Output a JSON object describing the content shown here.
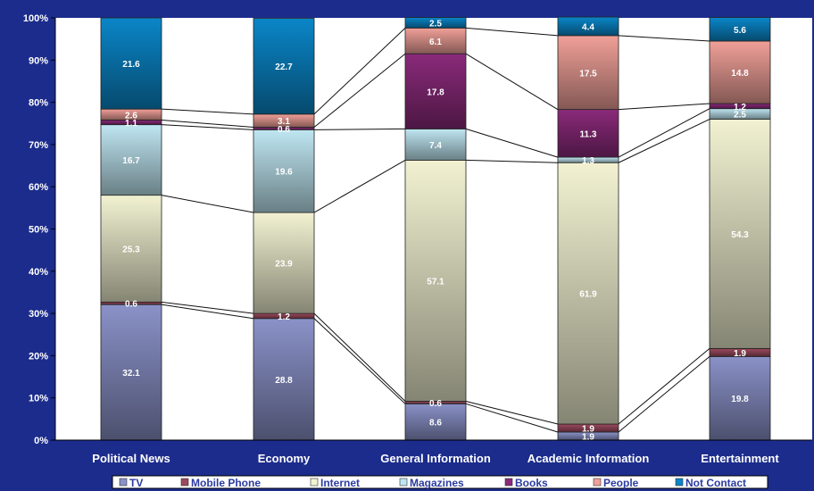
{
  "chart_data": {
    "type": "bar",
    "stacked": true,
    "percent_stacked": true,
    "categories": [
      "Political News",
      "Economy",
      "General Information",
      "Academic Information",
      "Entertainment"
    ],
    "series": [
      {
        "name": "TV",
        "color": "#8a92c8",
        "values": [
          32.1,
          28.8,
          8.6,
          1.9,
          19.8
        ]
      },
      {
        "name": "Mobile Phone",
        "color": "#9c4a5e",
        "values": [
          0.6,
          1.2,
          0.6,
          1.9,
          1.9
        ]
      },
      {
        "name": "Internet",
        "color": "#f2f2d2",
        "values": [
          25.3,
          23.9,
          57.1,
          61.9,
          54.3
        ]
      },
      {
        "name": "Magazines",
        "color": "#bfe6f2",
        "values": [
          16.7,
          19.6,
          7.4,
          1.3,
          2.5
        ]
      },
      {
        "name": "Books",
        "color": "#8a2a7a",
        "values": [
          1.1,
          0.6,
          17.8,
          11.3,
          1.2
        ]
      },
      {
        "name": "People",
        "color": "#f0a098",
        "values": [
          2.6,
          3.1,
          6.1,
          17.5,
          14.8
        ]
      },
      {
        "name": "Not Contact",
        "color": "#0a86c8",
        "values": [
          21.6,
          22.7,
          2.5,
          4.4,
          5.6
        ]
      }
    ],
    "yticks": [
      "0%",
      "10%",
      "20%",
      "30%",
      "40%",
      "50%",
      "60%",
      "70%",
      "80%",
      "90%",
      "100%"
    ],
    "ylim": [
      0,
      100
    ],
    "grid": false,
    "legend_position": "bottom",
    "series_lines": true
  },
  "colors": {
    "page_background": "#1c2c8c",
    "plot_background": "#ffffff",
    "legend_text": "#2c3ca0"
  }
}
